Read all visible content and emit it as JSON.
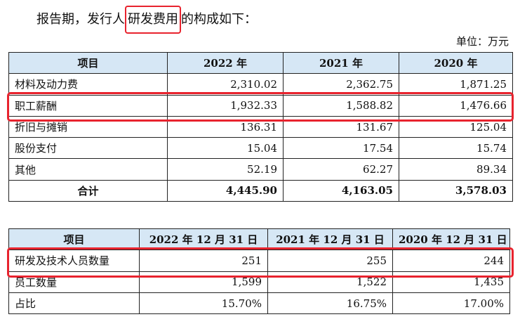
{
  "intro": {
    "prefix": "报告期，发行人",
    "highlight": "研发费用",
    "suffix": "的构成如下："
  },
  "unit_label": "单位：万元",
  "table1": {
    "headers": [
      "项目",
      "2022 年",
      "2021 年",
      "2020 年"
    ],
    "rows": [
      [
        "材料及动力费",
        "2,310.02",
        "2,362.75",
        "1,871.25"
      ],
      [
        "职工薪酬",
        "1,932.33",
        "1,588.82",
        "1,476.66"
      ],
      [
        "折旧与摊销",
        "136.31",
        "131.67",
        "125.04"
      ],
      [
        "股份支付",
        "15.04",
        "17.54",
        "15.74"
      ],
      [
        "其他",
        "52.19",
        "62.27",
        "89.34"
      ],
      [
        "合计",
        "4,445.90",
        "4,163.05",
        "3,578.03"
      ]
    ]
  },
  "table2": {
    "headers": [
      "项目",
      "2022 年 12 月 31 日",
      "2021 年 12 月 31 日",
      "2020 年 12 月 31 日"
    ],
    "rows": [
      [
        "研发及技术人员数量",
        "251",
        "255",
        "244"
      ],
      [
        "员工数量",
        "1,599",
        "1,522",
        "1,435"
      ],
      [
        "占比",
        "15.70%",
        "16.75%",
        "17.00%"
      ]
    ]
  },
  "colors": {
    "header_bg": "#d6e7f5",
    "highlight_border": "#e8232e"
  }
}
